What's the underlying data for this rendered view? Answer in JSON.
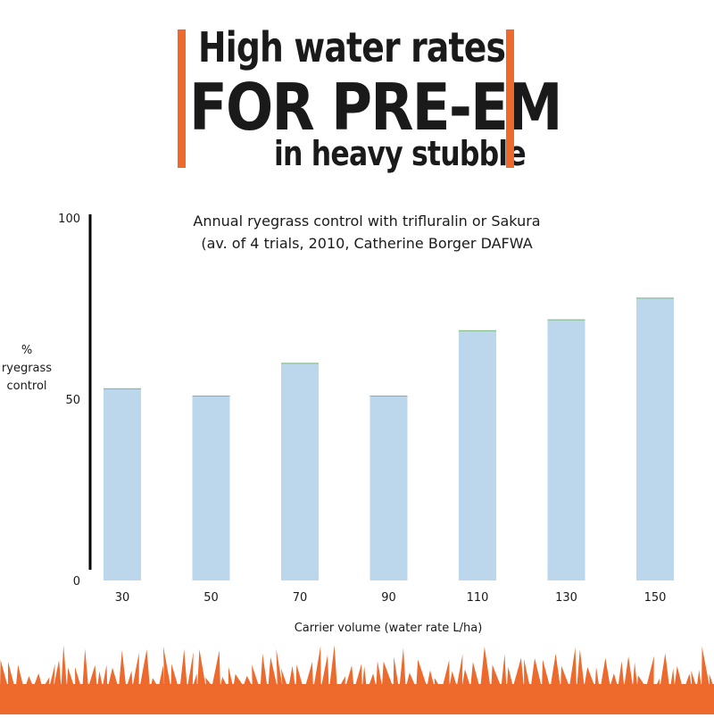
{
  "headline": {
    "line1": "High water rates",
    "line2": "FOR PRE-EM",
    "line3": "in heavy stubble",
    "accent_color": "#ee6a2c"
  },
  "chart_data": {
    "type": "bar",
    "title": "Annual ryegrass control with trifluralin or Sakura",
    "subtitle": "(av. of 4 trials, 2010, Catherine Borger DAFWA",
    "xlabel": "Carrier volume (water rate L/ha)",
    "ylabel": [
      "%",
      "ryegrass",
      "control"
    ],
    "categories": [
      "30",
      "50",
      "70",
      "90",
      "110",
      "130",
      "150"
    ],
    "values": [
      53,
      51,
      60,
      51,
      69,
      72,
      78
    ],
    "ylim": [
      0,
      100
    ],
    "yticks": [
      "0",
      "50",
      "100"
    ],
    "bar_color": "#bcd7ec",
    "bar_top_color": "#7fb77e",
    "grid": false
  },
  "footer": {
    "grass_color": "#ee6a2c",
    "icon": "grass-icon"
  }
}
